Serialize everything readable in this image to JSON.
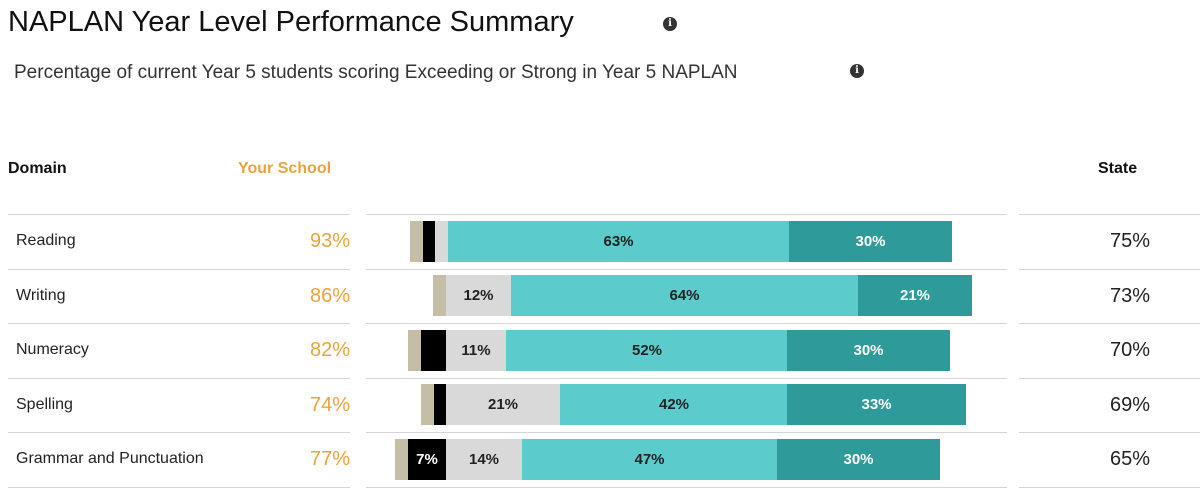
{
  "header": {
    "title": "NAPLAN Year Level Performance Summary",
    "subtitle": "Percentage of current Year 5 students scoring Exceeding or Strong in Year 5 NAPLAN",
    "info_icon": "info-icon"
  },
  "columns": {
    "domain": "Domain",
    "school": "Your School",
    "state": "State"
  },
  "colors": {
    "school_accent": "#E8A33D",
    "needs_support": "#C4BEA7",
    "developing": "#000000",
    "strong": "#D9D9D9",
    "exceeding_low": "#5BCBCC",
    "exceeding": "#2E9B9A"
  },
  "chart_data": {
    "type": "bar",
    "orientation": "horizontal-stacked-diverging",
    "categories": [
      "Reading",
      "Writing",
      "Numeracy",
      "Spelling",
      "Grammar and Punctuation"
    ],
    "school_percent": [
      "93%",
      "86%",
      "82%",
      "74%",
      "77%"
    ],
    "state_percent": [
      "75%",
      "73%",
      "70%",
      "69%",
      "65%"
    ],
    "segments": [
      [
        {
          "key": "needs_support",
          "value": 2.4,
          "label": ""
        },
        {
          "key": "developing",
          "value": 2.2,
          "label": ""
        },
        {
          "key": "strong",
          "value": 2.4,
          "label": ""
        },
        {
          "key": "exceeding_low",
          "value": 63,
          "label": "63%"
        },
        {
          "key": "exceeding",
          "value": 30,
          "label": "30%"
        }
      ],
      [
        {
          "key": "needs_support",
          "value": 2.4,
          "label": ""
        },
        {
          "key": "strong",
          "value": 12,
          "label": "12%"
        },
        {
          "key": "exceeding_low",
          "value": 64,
          "label": "64%"
        },
        {
          "key": "exceeding",
          "value": 21,
          "label": "21%"
        }
      ],
      [
        {
          "key": "needs_support",
          "value": 2.4,
          "label": ""
        },
        {
          "key": "developing",
          "value": 4.6,
          "label": ""
        },
        {
          "key": "strong",
          "value": 11,
          "label": "11%"
        },
        {
          "key": "exceeding_low",
          "value": 52,
          "label": "52%"
        },
        {
          "key": "exceeding",
          "value": 30,
          "label": "30%"
        }
      ],
      [
        {
          "key": "needs_support",
          "value": 2.4,
          "label": ""
        },
        {
          "key": "developing",
          "value": 2.2,
          "label": ""
        },
        {
          "key": "strong",
          "value": 21,
          "label": "21%"
        },
        {
          "key": "exceeding_low",
          "value": 42,
          "label": "42%"
        },
        {
          "key": "exceeding",
          "value": 33,
          "label": "33%"
        }
      ],
      [
        {
          "key": "needs_support",
          "value": 2.4,
          "label": ""
        },
        {
          "key": "developing",
          "value": 7,
          "label": "7%"
        },
        {
          "key": "strong",
          "value": 14,
          "label": "14%"
        },
        {
          "key": "exceeding_low",
          "value": 47,
          "label": "47%"
        },
        {
          "key": "exceeding",
          "value": 30,
          "label": "30%"
        }
      ]
    ]
  }
}
